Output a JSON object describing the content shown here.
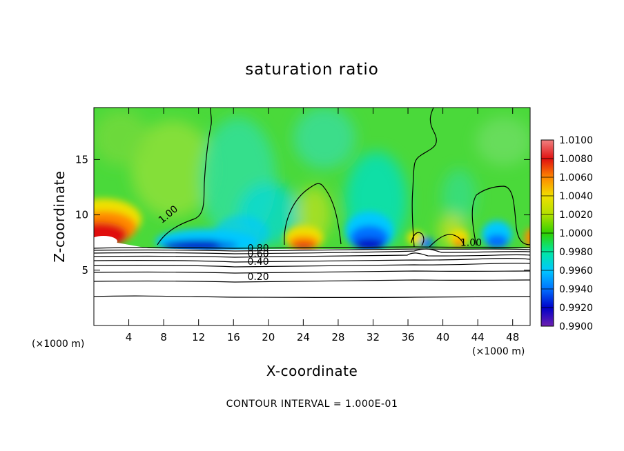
{
  "chart_data": {
    "type": "heatmap",
    "title": "saturation ratio",
    "xlabel": "X-coordinate",
    "ylabel": "Z-coordinate",
    "x_unit_note": "(×1000 m)",
    "x_ticks": [
      4,
      8,
      12,
      16,
      20,
      24,
      28,
      32,
      36,
      40,
      44,
      48
    ],
    "y_ticks": [
      5,
      10,
      15
    ],
    "xlim": [
      0,
      50
    ],
    "ylim": [
      0,
      19.7
    ],
    "footer": "CONTOUR INTERVAL = 1.000E-01",
    "colorbar": {
      "levels": [
        "1.0100",
        "1.0080",
        "1.0060",
        "1.0040",
        "1.0020",
        "1.0000",
        "0.9980",
        "0.9960",
        "0.9940",
        "0.9920",
        "0.9900"
      ],
      "colors": [
        "#f08080",
        "#e01010",
        "#ff8800",
        "#f0e000",
        "#b0e000",
        "#30d000",
        "#00e8a0",
        "#00c8ff",
        "#0070ff",
        "#0000c8",
        "#7020b0"
      ]
    },
    "contour_labels": [
      {
        "text": "1.00",
        "x": 7.8,
        "z": 9.2
      },
      {
        "text": "1.00",
        "x": 42.0,
        "z": 7.2
      },
      {
        "text": "0.80",
        "x": 17.6,
        "z": 6.7
      },
      {
        "text": "0.60",
        "x": 17.6,
        "z": 6.2
      },
      {
        "text": "0.40",
        "x": 17.6,
        "z": 5.5
      },
      {
        "text": "0.20",
        "x": 17.6,
        "z": 4.1
      }
    ],
    "field_description": "moist layer boundary near z≈7 with supersaturated (red) patches near x≈2, 25, 38, 50 and subsaturated (blue) patches near x≈11, 31, 47"
  }
}
